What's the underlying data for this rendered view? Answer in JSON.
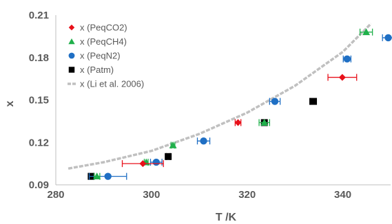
{
  "chart_data": {
    "type": "scatter",
    "title": "",
    "xlabel": "T /K",
    "ylabel": "x",
    "xlim": [
      280,
      350
    ],
    "ylim": [
      0.09,
      0.21
    ],
    "xticks": [
      280,
      300,
      320,
      340
    ],
    "yticks": [
      0.09,
      0.12,
      0.15,
      0.18,
      0.21
    ],
    "ytick_labels": [
      "0.09",
      "0.12",
      "0.15",
      "0.18",
      "0.21"
    ],
    "grid": false,
    "legend_position": "top-left",
    "series": [
      {
        "name": "x (PeqCO2)",
        "marker": "diamond",
        "color": "#e8101a",
        "points": [
          {
            "x": 298.2,
            "y": 0.105,
            "xerr": 4.3
          },
          {
            "x": 318.1,
            "y": 0.134,
            "xerr": 0.6
          },
          {
            "x": 339.9,
            "y": 0.166,
            "xerr": 3.0
          }
        ]
      },
      {
        "name": "x (PeqCH4)",
        "marker": "triangle",
        "color": "#20b04b",
        "points": [
          {
            "x": 288.6,
            "y": 0.096,
            "xerr": 0.6
          },
          {
            "x": 298.9,
            "y": 0.106,
            "xerr": 0.4
          },
          {
            "x": 304.5,
            "y": 0.118,
            "xerr": 0.4
          },
          {
            "x": 323.6,
            "y": 0.134,
            "xerr": 1.1
          },
          {
            "x": 344.9,
            "y": 0.198,
            "xerr": 1.3
          }
        ]
      },
      {
        "name": "x (PeqN2)",
        "marker": "circle",
        "color": "#1f6fc4",
        "points": [
          {
            "x": 290.9,
            "y": 0.096,
            "xerr": 3.9
          },
          {
            "x": 301.0,
            "y": 0.106,
            "xerr": 1.2
          },
          {
            "x": 310.9,
            "y": 0.121,
            "xerr": 1.3
          },
          {
            "x": 325.8,
            "y": 0.149,
            "xerr": 1.1
          },
          {
            "x": 340.9,
            "y": 0.179,
            "xerr": 0.8
          },
          {
            "x": 349.5,
            "y": 0.194,
            "xerr": 1.2
          }
        ]
      },
      {
        "name": "x (Patm)",
        "marker": "square",
        "color": "#000000",
        "points": [
          {
            "x": 287.4,
            "y": 0.096,
            "xerr": 0.5
          },
          {
            "x": 303.5,
            "y": 0.11,
            "xerr": 0.4
          },
          {
            "x": 323.6,
            "y": 0.134,
            "xerr": 0.5
          },
          {
            "x": 333.8,
            "y": 0.149,
            "xerr": 0.7
          }
        ]
      },
      {
        "name": "x (Li et al. 2006)",
        "marker": "dashed-line",
        "color": "#c0c0c0",
        "points": [
          {
            "x": 282.6,
            "y": 0.1015
          },
          {
            "x": 290,
            "y": 0.106
          },
          {
            "x": 300,
            "y": 0.114
          },
          {
            "x": 310,
            "y": 0.126
          },
          {
            "x": 320,
            "y": 0.141
          },
          {
            "x": 330,
            "y": 0.16
          },
          {
            "x": 340,
            "y": 0.184
          },
          {
            "x": 345.9,
            "y": 0.204
          }
        ]
      }
    ]
  }
}
